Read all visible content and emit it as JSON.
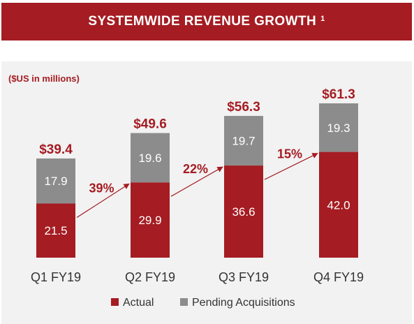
{
  "header": {
    "title": "SYSTEMWIDE REVENUE GROWTH",
    "footnote": "1"
  },
  "chart_data": {
    "type": "bar",
    "stacked": true,
    "unit_label": "($US in millions)",
    "categories": [
      "Q1 FY19",
      "Q2 FY19",
      "Q3 FY19",
      "Q4 FY19"
    ],
    "series": [
      {
        "name": "Actual",
        "values": [
          21.5,
          29.9,
          36.6,
          42.0
        ],
        "labels": [
          "21.5",
          "29.9",
          "36.6",
          "42.0"
        ],
        "color": "#a51c22"
      },
      {
        "name": "Pending Acquisitions",
        "values": [
          17.9,
          19.6,
          19.7,
          19.3
        ],
        "labels": [
          "17.9",
          "19.6",
          "19.7",
          "19.3"
        ],
        "color": "#8c8c8c"
      }
    ],
    "totals": [
      "$39.4",
      "$49.6",
      "$56.3",
      "$61.3"
    ],
    "growth": [
      "39%",
      "22%",
      "15%"
    ],
    "ylim": [
      0,
      61.3
    ],
    "legend_position": "bottom",
    "label_color": "#a51c22",
    "grid": false
  }
}
